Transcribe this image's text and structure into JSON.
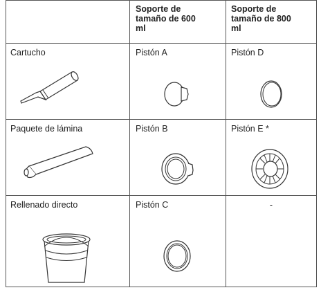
{
  "table": {
    "header": [
      "Soporte de tamaño de 600 ml",
      "Soporte de tamaño de 800 ml"
    ],
    "rows": [
      [
        "Cartucho",
        "Pistón A",
        "Pistón D"
      ],
      [
        "Paquete de lámina",
        "Pistón B",
        "Pistón E *"
      ],
      [
        "Rellenado directo",
        "Pistón C",
        "-"
      ]
    ]
  }
}
